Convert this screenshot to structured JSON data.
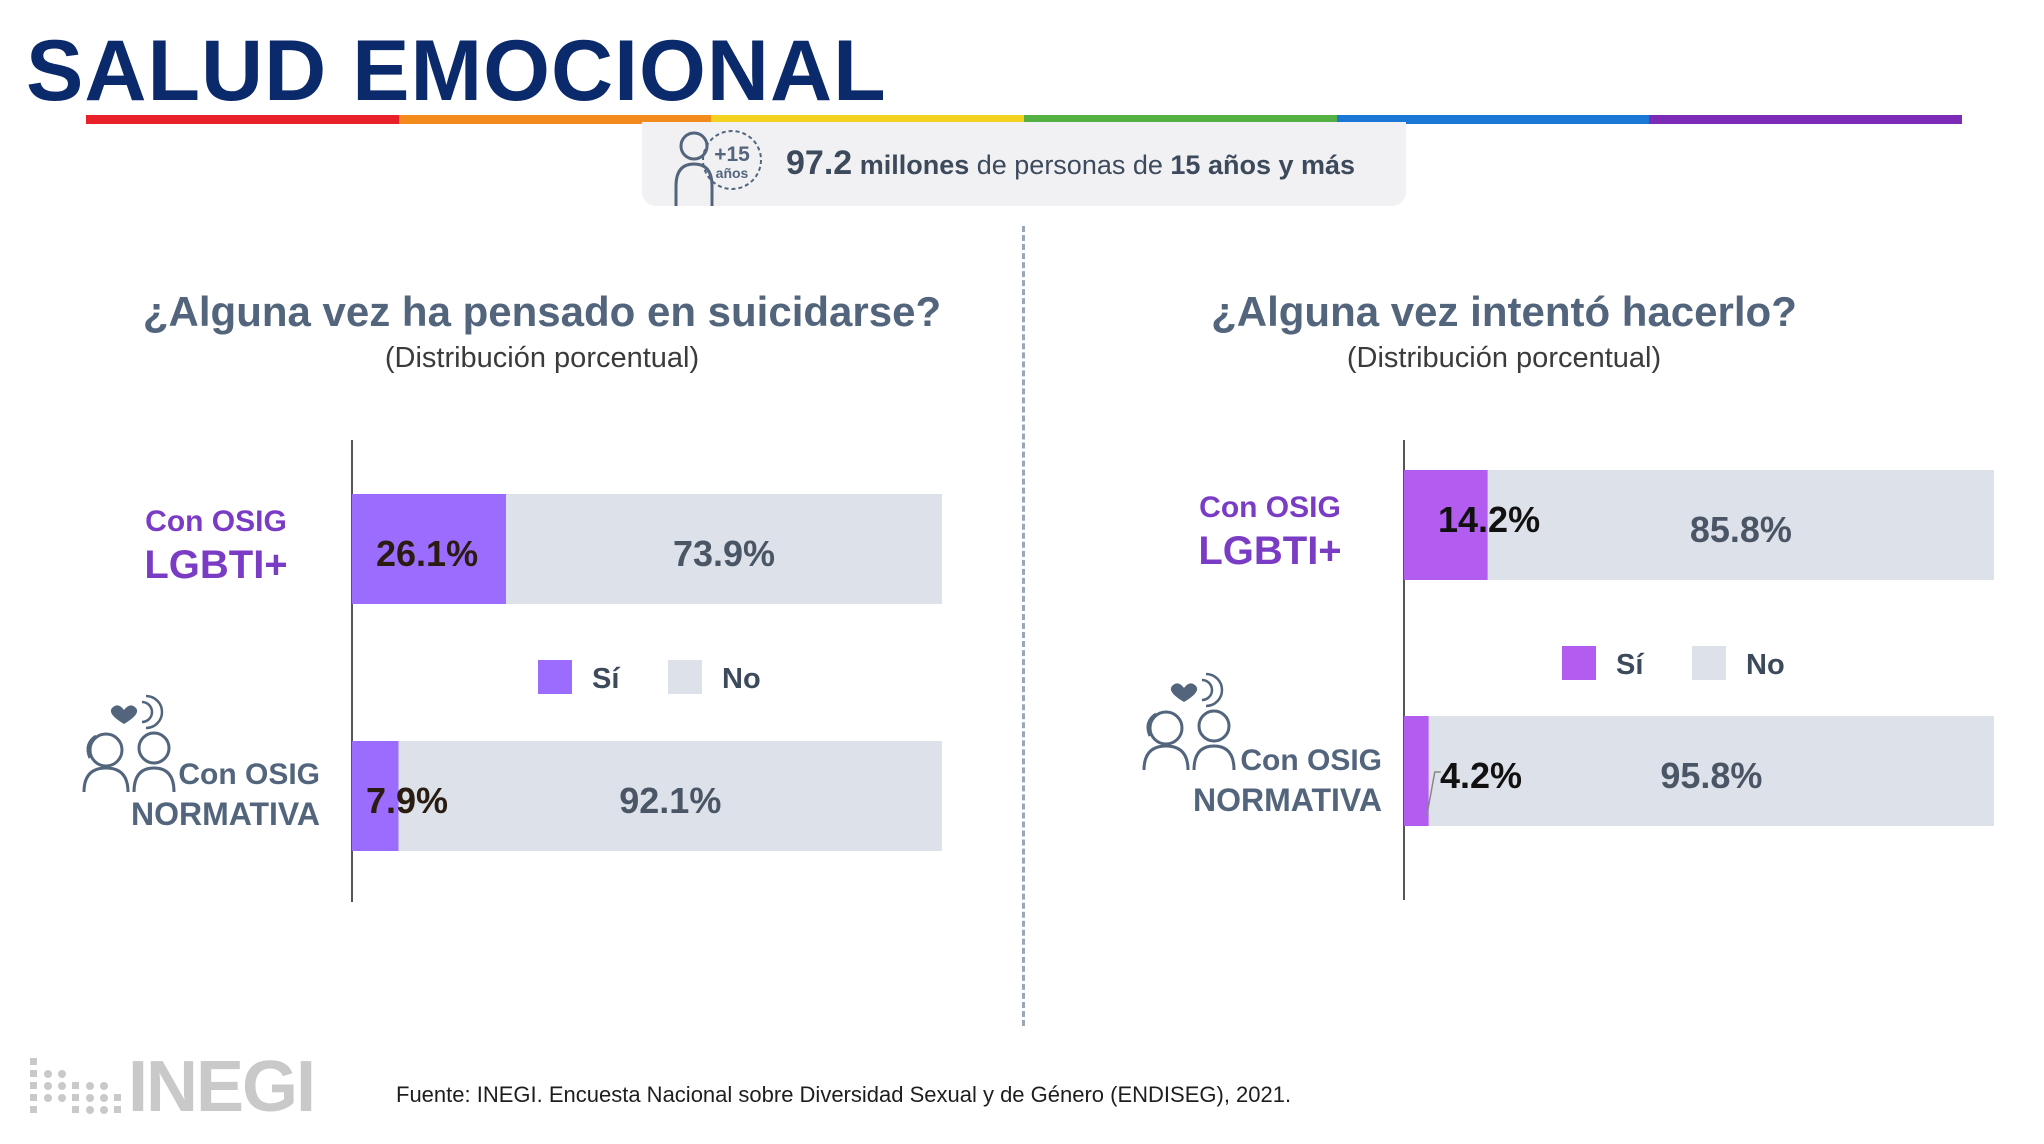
{
  "header": {
    "title": "SALUD EMOCIONAL",
    "rainbow_colors": [
      "#e8202a",
      "#f28a1c",
      "#f2d21e",
      "#54b043",
      "#1b77d6",
      "#7b2bb6"
    ]
  },
  "banner": {
    "badge_number": "+15",
    "badge_unit": "años",
    "value": "97.2",
    "value_unit": "millones",
    "text_mid": "de personas de",
    "text_bold": "15 años y más"
  },
  "panels": {
    "left": {
      "question": "¿Alguna vez ha pensado en suicidarse?",
      "subtitle": "(Distribución porcentual)"
    },
    "right": {
      "question": "¿Alguna vez intentó hacerlo?",
      "subtitle": "(Distribución porcentual)"
    }
  },
  "categories": {
    "lgbti_line1": "Con OSIG",
    "lgbti_line2": "LGBTI+",
    "normativa_line1": "Con OSIG",
    "normativa_line2": "NORMATIVA"
  },
  "colors": {
    "si": "#9c6bff",
    "si_right": "#b25cf0",
    "no": "#dde1e9",
    "label_no": "#4a5565"
  },
  "chart_data": [
    {
      "type": "bar",
      "stacked": true,
      "orientation": "horizontal",
      "title": "¿Alguna vez ha pensado en suicidarse?",
      "subtitle": "(Distribución porcentual)",
      "categories": [
        "Con OSIG LGBTI+",
        "Con OSIG NORMATIVA"
      ],
      "series": [
        {
          "name": "Sí",
          "values": [
            26.1,
            7.9
          ],
          "labels": [
            "26.1%",
            "7.9%"
          ]
        },
        {
          "name": "No",
          "values": [
            73.9,
            92.1
          ],
          "labels": [
            "73.9%",
            "92.1%"
          ]
        }
      ],
      "xlim": [
        0,
        100
      ],
      "legend": "center"
    },
    {
      "type": "bar",
      "stacked": true,
      "orientation": "horizontal",
      "title": "¿Alguna vez intentó hacerlo?",
      "subtitle": "(Distribución porcentual)",
      "categories": [
        "Con OSIG LGBTI+",
        "Con OSIG NORMATIVA"
      ],
      "series": [
        {
          "name": "Sí",
          "values": [
            14.2,
            4.2
          ],
          "labels": [
            "14.2%",
            "4.2%"
          ]
        },
        {
          "name": "No",
          "values": [
            85.8,
            95.8
          ],
          "labels": [
            "85.8%",
            "95.8%"
          ]
        }
      ],
      "xlim": [
        0,
        100
      ],
      "legend": "center"
    }
  ],
  "footer": {
    "logo": "INEGI",
    "source": "Fuente:  INEGI. Encuesta Nacional sobre Diversidad Sexual y de Género (ENDISEG), 2021."
  }
}
